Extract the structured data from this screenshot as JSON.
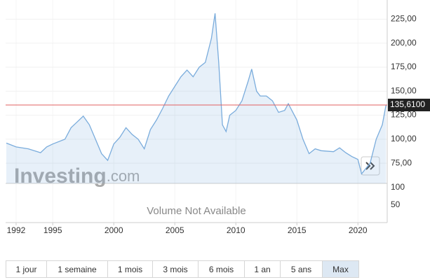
{
  "chart_data": {
    "type": "line",
    "x": [
      1991.2,
      1992,
      1993,
      1994,
      1994.5,
      1995,
      1996,
      1996.5,
      1997,
      1997.5,
      1998,
      1998.5,
      1999,
      1999.5,
      2000,
      2000.5,
      2001,
      2001.5,
      2002,
      2002.5,
      2003,
      2003.5,
      2004,
      2004.5,
      2005,
      2005.5,
      2006,
      2006.5,
      2007,
      2007.5,
      2008,
      2008.3,
      2008.6,
      2008.9,
      2009.2,
      2009.5,
      2010,
      2010.5,
      2011,
      2011.3,
      2011.7,
      2012,
      2012.5,
      2013,
      2013.5,
      2014,
      2014.3,
      2015,
      2015.5,
      2016,
      2016.5,
      2017,
      2018,
      2018.5,
      2019,
      2019.5,
      2020,
      2020.3,
      2021,
      2021.5,
      2022,
      2022.3
    ],
    "series": [
      {
        "color": "#7aacdc",
        "values": [
          96,
          92,
          90,
          86,
          92,
          95,
          100,
          112,
          118,
          124,
          115,
          100,
          85,
          78,
          95,
          102,
          112,
          105,
          100,
          90,
          110,
          120,
          132,
          145,
          155,
          165,
          172,
          165,
          175,
          180,
          205,
          231,
          180,
          115,
          108,
          125,
          130,
          140,
          160,
          173,
          150,
          145,
          145,
          140,
          128,
          130,
          137,
          120,
          100,
          85,
          90,
          88,
          87,
          91,
          86,
          82,
          79,
          64,
          75,
          100,
          115,
          135.61
        ]
      }
    ],
    "xlim": [
      1991.14,
      2022.4
    ],
    "xticks": [
      1992,
      1995,
      2000,
      2005,
      2010,
      2015,
      2020
    ],
    "ylim": [
      54,
      234
    ],
    "yticks": [
      {
        "value": 75,
        "label": "75,00"
      },
      {
        "value": 100,
        "label": "100,00"
      },
      {
        "value": 125,
        "label": "125,00"
      },
      {
        "value": 150,
        "label": "150,00"
      },
      {
        "value": 175,
        "label": "175,00"
      },
      {
        "value": 200,
        "label": "200,00"
      },
      {
        "value": 225,
        "label": "225,00"
      }
    ],
    "grid": true,
    "last_value": 135.61,
    "last_label": "135,6100",
    "last_color": "#e06060",
    "volume_ylim": [
      0,
      112
    ],
    "volume_yticks": [
      100,
      50
    ],
    "volume_note": "Volume Not Available",
    "brand": "Investing",
    "brand_suffix": ".com"
  },
  "range_buttons": [
    "1 jour",
    "1 semaine",
    "1 mois",
    "3 mois",
    "6 mois",
    "1 an",
    "5 ans",
    "Max"
  ],
  "active_range": "Max"
}
